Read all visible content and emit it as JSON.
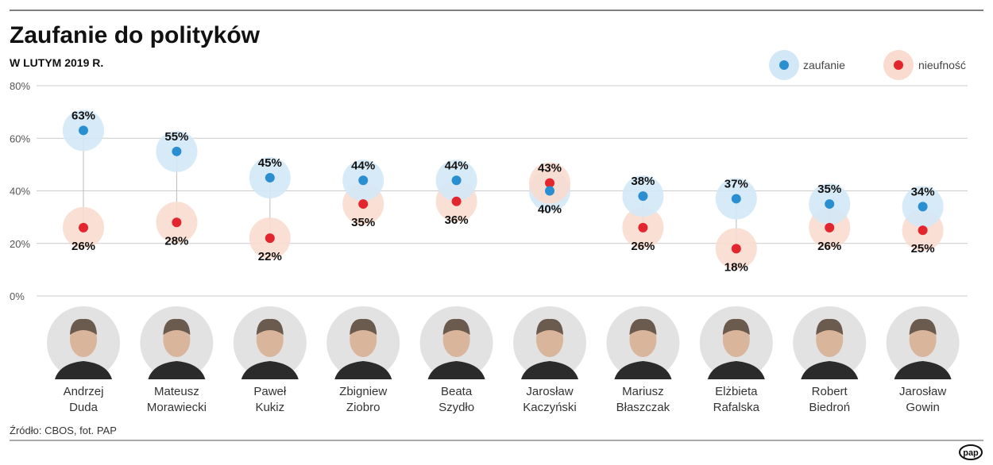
{
  "title": "Zaufanie do polityków",
  "subtitle": "W LUTYM 2019 R.",
  "source": "Źródło: CBOS, fot. PAP",
  "logo_text": "pap",
  "colors": {
    "trust": "#2a8fd0",
    "trust_halo": "#d3e8f7",
    "distrust": "#e3262e",
    "distrust_halo": "#fadbcf"
  },
  "chart_data": {
    "type": "dumbbell",
    "ylim": [
      0,
      80
    ],
    "yticks": [
      "0%",
      "20%",
      "40%",
      "60%",
      "80%"
    ],
    "grid": true,
    "legend_position": "top-right",
    "categories": [
      [
        "Andrzej",
        "Duda"
      ],
      [
        "Mateusz",
        "Morawiecki"
      ],
      [
        "Paweł",
        "Kukiz"
      ],
      [
        "Zbigniew",
        "Ziobro"
      ],
      [
        "Beata",
        "Szydło"
      ],
      [
        "Jarosław",
        "Kaczyński"
      ],
      [
        "Mariusz",
        "Błaszczak"
      ],
      [
        "Elżbieta",
        "Rafalska"
      ],
      [
        "Robert",
        "Biedroń"
      ],
      [
        "Jarosław",
        "Gowin"
      ]
    ],
    "series": [
      {
        "name": "zaufanie",
        "values": [
          63,
          55,
          45,
          44,
          44,
          40,
          38,
          37,
          35,
          34
        ]
      },
      {
        "name": "nieufność",
        "values": [
          26,
          28,
          22,
          35,
          36,
          43,
          26,
          18,
          26,
          25
        ]
      }
    ]
  }
}
